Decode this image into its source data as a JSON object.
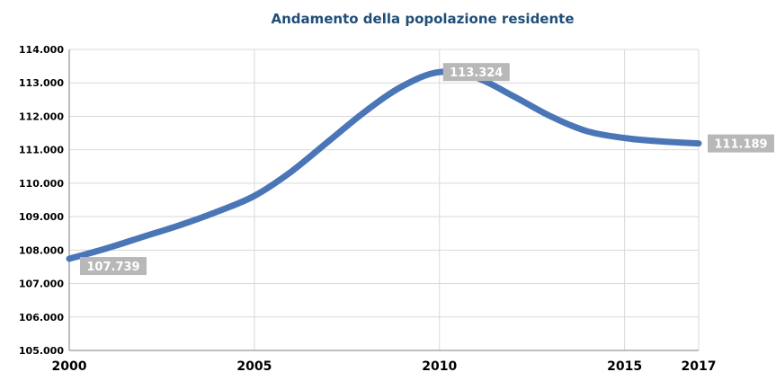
{
  "chart_data": {
    "type": "line",
    "title": "Andamento della popolazione residente",
    "xlabel": "",
    "ylabel": "",
    "x": [
      2000,
      2001,
      2002,
      2003,
      2004,
      2005,
      2006,
      2007,
      2008,
      2009,
      2010,
      2011,
      2012,
      2013,
      2014,
      2015,
      2016,
      2017
    ],
    "series": [
      {
        "values": [
          107739,
          108050,
          108400,
          108750,
          109150,
          109620,
          110350,
          111250,
          112150,
          112900,
          113324,
          113150,
          112600,
          112000,
          111550,
          111350,
          111250,
          111189
        ]
      }
    ],
    "xlim": [
      2000,
      2017
    ],
    "ylim": [
      105000,
      114000
    ],
    "x_ticks": [
      2000,
      2005,
      2010,
      2015,
      2017
    ],
    "x_tick_labels": [
      "2000",
      "2005",
      "2010",
      "2015",
      "2017"
    ],
    "y_ticks": [
      105000,
      106000,
      107000,
      108000,
      109000,
      110000,
      111000,
      112000,
      113000,
      114000
    ],
    "y_tick_labels": [
      "105.000",
      "106.000",
      "107.000",
      "108.000",
      "109.000",
      "110.000",
      "111.000",
      "112.000",
      "113.000",
      "114.000"
    ],
    "callouts": [
      {
        "x": 2000,
        "y": 107739,
        "label": "107.739"
      },
      {
        "x": 2010,
        "y": 113324,
        "label": "113.324"
      },
      {
        "x": 2017,
        "y": 111189,
        "label": "111.189"
      }
    ],
    "grid": true,
    "legend": "none",
    "colors": {
      "line": "#4a76b8",
      "title": "#1f4e79",
      "callout_bg": "#b8b8b8",
      "grid": "#d9d9d9",
      "axis": "#7f7f7f"
    }
  }
}
